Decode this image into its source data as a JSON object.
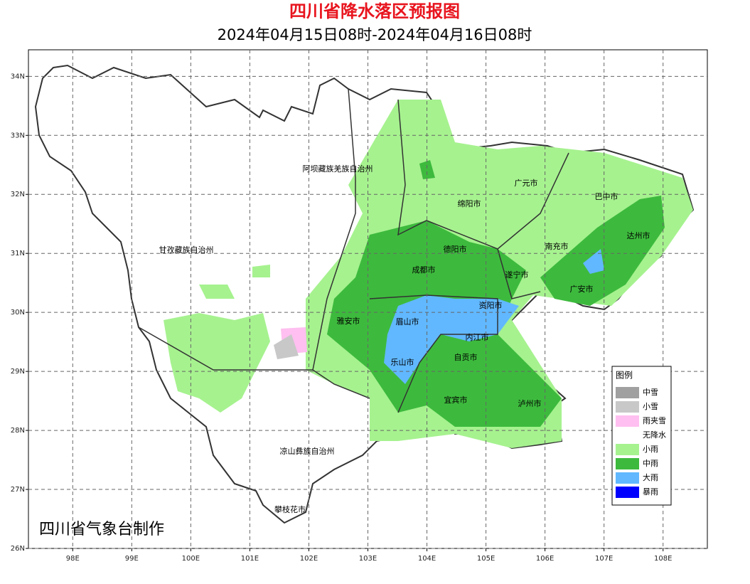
{
  "map": {
    "title": "四川省降水落区预报图",
    "subtitle": "2024年04月15日08时-2024年04月16日08时",
    "credit": "四川省气象台制作",
    "xlim": [
      97.25,
      108.75
    ],
    "ylim": [
      26,
      34.45
    ],
    "xticks": [
      {
        "value": 98,
        "label": "98E"
      },
      {
        "value": 99,
        "label": "99E"
      },
      {
        "value": 100,
        "label": "100E"
      },
      {
        "value": 101,
        "label": "101E"
      },
      {
        "value": 102,
        "label": "102E"
      },
      {
        "value": 103,
        "label": "103E"
      },
      {
        "value": 104,
        "label": "104E"
      },
      {
        "value": 105,
        "label": "105E"
      },
      {
        "value": 106,
        "label": "106E"
      },
      {
        "value": 107,
        "label": "107E"
      },
      {
        "value": 108,
        "label": "108E"
      }
    ],
    "yticks": [
      {
        "value": 26,
        "label": "26N"
      },
      {
        "value": 27,
        "label": "27N"
      },
      {
        "value": 28,
        "label": "28N"
      },
      {
        "value": 29,
        "label": "29N"
      },
      {
        "value": 30,
        "label": "30N"
      },
      {
        "value": 31,
        "label": "31N"
      },
      {
        "value": 32,
        "label": "32N"
      },
      {
        "value": 33,
        "label": "33N"
      },
      {
        "value": 34,
        "label": "34N"
      }
    ],
    "grid": true,
    "regions": [
      "阿坝藏族羌族自治州",
      "甘孜藏族自治州",
      "广元市",
      "巴中市",
      "绵阳市",
      "达州市",
      "德阳市",
      "南充市",
      "成都市",
      "遂宁市",
      "广安市",
      "资阳市",
      "雅安市",
      "眉山市",
      "内江市",
      "自贡市",
      "乐山市",
      "宜宾市",
      "泸州市",
      "凉山彝族自治州",
      "攀枝花市"
    ],
    "legend": {
      "title": "图例",
      "items": [
        {
          "label": "中雪",
          "color": "#a0a0a0"
        },
        {
          "label": "小雪",
          "color": "#c8c8c8"
        },
        {
          "label": "雨夹雪",
          "color": "#ffbff0"
        },
        {
          "label": "无降水",
          "color": "#ffffff"
        },
        {
          "label": "小雨",
          "color": "#a6f28f"
        },
        {
          "label": "中雨",
          "color": "#3dba3d"
        },
        {
          "label": "大雨",
          "color": "#61b8ff"
        },
        {
          "label": "暴雨",
          "color": "#0000fe"
        }
      ]
    }
  }
}
